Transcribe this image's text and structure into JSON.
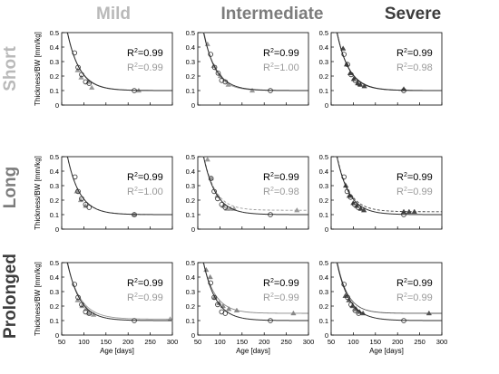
{
  "colors": {
    "black": "#000000",
    "dark_series": "#2b2b2b",
    "light_series": "#9a9a9a",
    "axis": "#000000",
    "grid": "#ffffff",
    "col_mild": "#b9b9b9",
    "col_intermediate": "#7c7c7c",
    "col_severe": "#3c3c3c",
    "row_short": "#b9b9b9",
    "row_long": "#7c7c7c",
    "row_prolonged": "#3c3c3c"
  },
  "column_titles": [
    "Mild",
    "Intermediate",
    "Severe"
  ],
  "row_titles": [
    "Short",
    "Long",
    "Prolonged"
  ],
  "axis_text": {
    "xlabel": "Age [days]",
    "ylabel": "Thickness/BW [mm/kg]",
    "x_ticks": [
      50,
      100,
      150,
      200,
      250,
      300
    ],
    "y_ticks": [
      0,
      0.1,
      0.2,
      0.3,
      0.4,
      0.5
    ],
    "x_tick_labels": [
      "50",
      "100",
      "150",
      "200",
      "250",
      "300"
    ],
    "y_tick_labels": [
      "0",
      "0.1",
      "0.2",
      "0.3",
      "0.4",
      "0.5"
    ]
  },
  "chart_data": [
    {
      "type": "scatter",
      "title": "",
      "xlim": [
        50,
        300
      ],
      "ylim": [
        0,
        0.5
      ],
      "series": [
        {
          "marker": "circle",
          "style": "solid",
          "color": "#2b2b2b",
          "points": [
            [
              79,
              0.36
            ],
            [
              87,
              0.26
            ],
            [
              95,
              0.21
            ],
            [
              104,
              0.16
            ],
            [
              112,
              0.15
            ],
            [
              214,
              0.1
            ]
          ],
          "fit": {
            "asymptote": 0.1,
            "amp": 0.2616,
            "decay": 28.0
          }
        },
        {
          "marker": "triangle",
          "style": "solid",
          "color": "#9a9a9a",
          "points": [
            [
              86,
              0.24
            ],
            [
              94,
              0.19
            ],
            [
              110,
              0.16
            ],
            [
              118,
              0.12
            ],
            [
              224,
              0.1
            ]
          ],
          "fit": {
            "asymptote": 0.1,
            "amp": 0.2616,
            "decay": 29.0
          }
        }
      ],
      "r2": [
        "0.99",
        "0.99"
      ]
    },
    {
      "type": "scatter",
      "title": "",
      "xlim": [
        50,
        300
      ],
      "ylim": [
        0,
        0.5
      ],
      "series": [
        {
          "marker": "circle",
          "style": "solid",
          "color": "#2b2b2b",
          "points": [
            [
              79,
              0.35
            ],
            [
              88,
              0.26
            ],
            [
              96,
              0.22
            ],
            [
              104,
              0.17
            ],
            [
              112,
              0.16
            ],
            [
              214,
              0.1
            ]
          ],
          "fit": {
            "asymptote": 0.1,
            "amp": 0.2616,
            "decay": 28.0
          }
        },
        {
          "marker": "triangle",
          "style": "solid",
          "color": "#9a9a9a",
          "points": [
            [
              72,
              0.42
            ],
            [
              86,
              0.27
            ],
            [
              101,
              0.2
            ],
            [
              119,
              0.14
            ],
            [
              173,
              0.1
            ]
          ],
          "fit": {
            "asymptote": 0.1,
            "amp": 0.2616,
            "decay": 25.0
          }
        }
      ],
      "r2": [
        "0.99",
        "1.00"
      ]
    },
    {
      "type": "scatter",
      "title": "",
      "xlim": [
        50,
        300
      ],
      "ylim": [
        0,
        0.5
      ],
      "series": [
        {
          "marker": "circle",
          "style": "solid",
          "color": "#2b2b2b",
          "points": [
            [
              79,
              0.35
            ],
            [
              87,
              0.28
            ],
            [
              95,
              0.21
            ],
            [
              104,
              0.17
            ],
            [
              112,
              0.15
            ],
            [
              214,
              0.1
            ]
          ],
          "fit": {
            "asymptote": 0.1,
            "amp": 0.2616,
            "decay": 28.0
          }
        },
        {
          "marker": "triangle",
          "style": "solid",
          "color": "#444444",
          "points": [
            [
              77,
              0.39
            ],
            [
              85,
              0.28
            ],
            [
              93,
              0.22
            ],
            [
              101,
              0.18
            ],
            [
              110,
              0.15
            ],
            [
              116,
              0.14
            ],
            [
              125,
              0.13
            ],
            [
              214,
              0.11
            ]
          ],
          "fit": {
            "asymptote": 0.1,
            "amp": 0.2616,
            "decay": 27.0
          }
        }
      ],
      "r2": [
        "0.99",
        "0.98"
      ]
    },
    {
      "type": "scatter",
      "title": "",
      "xlim": [
        50,
        300
      ],
      "ylim": [
        0,
        0.5
      ],
      "series": [
        {
          "marker": "circle",
          "style": "solid",
          "color": "#2b2b2b",
          "points": [
            [
              80,
              0.36
            ],
            [
              87,
              0.26
            ],
            [
              95,
              0.21
            ],
            [
              104,
              0.17
            ],
            [
              112,
              0.15
            ],
            [
              214,
              0.1
            ]
          ],
          "fit": {
            "asymptote": 0.1,
            "amp": 0.2616,
            "decay": 28.0
          }
        },
        {
          "marker": "triangle",
          "style": "dashed",
          "color": "#9a9a9a",
          "points": [
            [
              84,
              0.26
            ],
            [
              93,
              0.2
            ],
            [
              104,
              0.16
            ],
            [
              214,
              0.1
            ]
          ],
          "fit": {
            "asymptote": 0.1,
            "amp": 0.2616,
            "decay": 28.5
          }
        }
      ],
      "r2": [
        "0.99",
        "1.00"
      ]
    },
    {
      "type": "scatter",
      "title": "",
      "xlim": [
        50,
        300
      ],
      "ylim": [
        0,
        0.5
      ],
      "series": [
        {
          "marker": "circle",
          "style": "solid",
          "color": "#2b2b2b",
          "points": [
            [
              80,
              0.35
            ],
            [
              87,
              0.26
            ],
            [
              95,
              0.21
            ],
            [
              104,
              0.17
            ],
            [
              112,
              0.15
            ],
            [
              214,
              0.1
            ]
          ],
          "fit": {
            "asymptote": 0.1,
            "amp": 0.2616,
            "decay": 28.0
          }
        },
        {
          "marker": "triangle",
          "style": "dashed",
          "color": "#9a9a9a",
          "points": [
            [
              72,
              0.48
            ],
            [
              80,
              0.35
            ],
            [
              94,
              0.23
            ],
            [
              108,
              0.16
            ],
            [
              116,
              0.14
            ],
            [
              124,
              0.14
            ],
            [
              132,
              0.14
            ],
            [
              274,
              0.13
            ]
          ],
          "fit": {
            "asymptote": 0.13,
            "amp": 0.2412,
            "decay": 26.0
          }
        }
      ],
      "r2": [
        "0.99",
        "0.98"
      ]
    },
    {
      "type": "scatter",
      "title": "",
      "xlim": [
        50,
        300
      ],
      "ylim": [
        0,
        0.5
      ],
      "series": [
        {
          "marker": "circle",
          "style": "solid",
          "color": "#2b2b2b",
          "points": [
            [
              79,
              0.36
            ],
            [
              86,
              0.26
            ],
            [
              94,
              0.22
            ],
            [
              103,
              0.17
            ],
            [
              111,
              0.15
            ],
            [
              214,
              0.1
            ]
          ],
          "fit": {
            "asymptote": 0.1,
            "amp": 0.2616,
            "decay": 28.0
          }
        },
        {
          "marker": "triangle",
          "style": "dashed",
          "color": "#444444",
          "points": [
            [
              83,
              0.3
            ],
            [
              91,
              0.23
            ],
            [
              100,
              0.18
            ],
            [
              108,
              0.16
            ],
            [
              117,
              0.14
            ],
            [
              124,
              0.13
            ],
            [
              214,
              0.12
            ],
            [
              226,
              0.12
            ],
            [
              238,
              0.12
            ]
          ],
          "fit": {
            "asymptote": 0.12,
            "amp": 0.248,
            "decay": 27.0
          }
        }
      ],
      "r2": [
        "0.99",
        "0.99"
      ]
    },
    {
      "type": "scatter",
      "title": "",
      "xlim": [
        50,
        300
      ],
      "ylim": [
        0,
        0.5
      ],
      "series": [
        {
          "marker": "circle",
          "style": "solid",
          "color": "#2b2b2b",
          "points": [
            [
              79,
              0.35
            ],
            [
              87,
              0.26
            ],
            [
              95,
              0.21
            ],
            [
              104,
              0.16
            ],
            [
              112,
              0.15
            ],
            [
              214,
              0.1
            ]
          ],
          "fit": {
            "asymptote": 0.1,
            "amp": 0.2616,
            "decay": 28.0
          }
        },
        {
          "marker": "triangle",
          "style": "solid",
          "color": "#9a9a9a",
          "points": [
            [
              86,
              0.24
            ],
            [
              96,
              0.2
            ],
            [
              105,
              0.18
            ],
            [
              112,
              0.15
            ],
            [
              122,
              0.14
            ],
            [
              295,
              0.11
            ]
          ],
          "fit": {
            "asymptote": 0.11,
            "amp": 0.2548,
            "decay": 30.0
          }
        }
      ],
      "r2": [
        "0.99",
        "0.99"
      ]
    },
    {
      "type": "scatter",
      "title": "",
      "xlim": [
        50,
        300
      ],
      "ylim": [
        0,
        0.5
      ],
      "series": [
        {
          "marker": "circle",
          "style": "solid",
          "color": "#2b2b2b",
          "points": [
            [
              79,
              0.36
            ],
            [
              87,
              0.26
            ],
            [
              95,
              0.21
            ],
            [
              104,
              0.16
            ],
            [
              112,
              0.15
            ],
            [
              214,
              0.1
            ]
          ],
          "fit": {
            "asymptote": 0.1,
            "amp": 0.2616,
            "decay": 28.0
          }
        },
        {
          "marker": "triangle",
          "style": "solid",
          "color": "#888888",
          "points": [
            [
              69,
              0.45
            ],
            [
              78,
              0.4
            ],
            [
              88,
              0.26
            ],
            [
              98,
              0.22
            ],
            [
              107,
              0.2
            ],
            [
              120,
              0.18
            ],
            [
              138,
              0.17
            ],
            [
              266,
              0.15
            ]
          ],
          "fit": {
            "asymptote": 0.15,
            "amp": 0.2208,
            "decay": 27.0
          }
        }
      ],
      "r2": [
        "0.99",
        "0.99"
      ]
    },
    {
      "type": "scatter",
      "title": "",
      "xlim": [
        50,
        300
      ],
      "ylim": [
        0,
        0.5
      ],
      "series": [
        {
          "marker": "circle",
          "style": "solid",
          "color": "#2b2b2b",
          "points": [
            [
              79,
              0.35
            ],
            [
              87,
              0.26
            ],
            [
              95,
              0.21
            ],
            [
              104,
              0.17
            ],
            [
              112,
              0.15
            ],
            [
              214,
              0.1
            ]
          ],
          "fit": {
            "asymptote": 0.1,
            "amp": 0.2616,
            "decay": 28.0
          }
        },
        {
          "marker": "triangle",
          "style": "solid",
          "color": "#555555",
          "points": [
            [
              82,
              0.27
            ],
            [
              90,
              0.24
            ],
            [
              98,
              0.2
            ],
            [
              106,
              0.18
            ],
            [
              114,
              0.16
            ],
            [
              122,
              0.15
            ],
            [
              271,
              0.15
            ]
          ],
          "fit": {
            "asymptote": 0.15,
            "amp": 0.2208,
            "decay": 24.0
          }
        }
      ],
      "r2": [
        "0.99",
        "0.99"
      ]
    }
  ]
}
